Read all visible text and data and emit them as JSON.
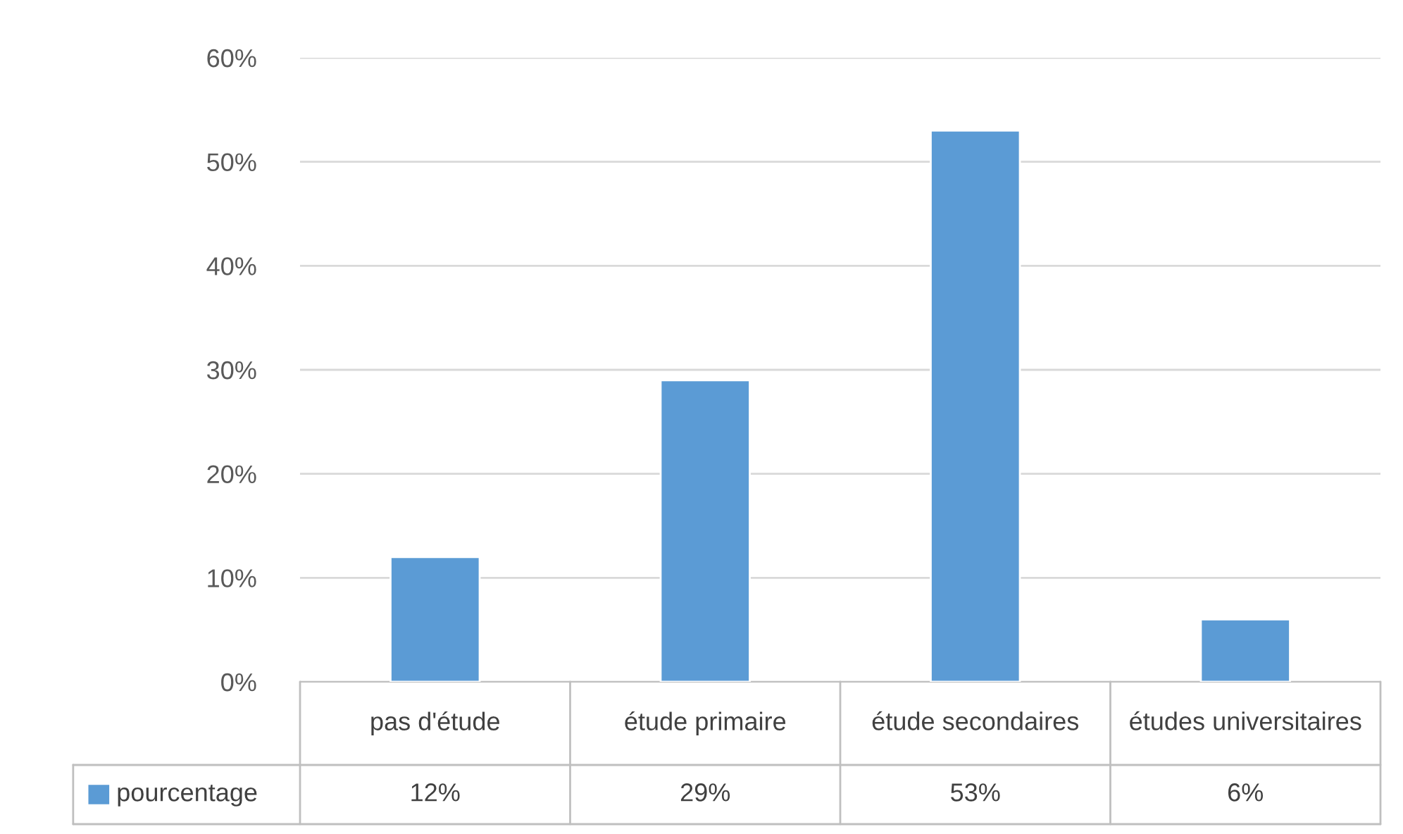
{
  "chart_data": {
    "type": "bar",
    "categories": [
      "pas d'étude",
      "étude primaire",
      "étude secondaires",
      "études universitaires"
    ],
    "series": [
      {
        "name": "pourcentage",
        "color": "#5b9bd5",
        "values": [
          12,
          29,
          53,
          6
        ]
      }
    ],
    "ylim": [
      0,
      60
    ],
    "yticks": [
      {
        "value": 0,
        "label": "0%"
      },
      {
        "value": 10,
        "label": "10%"
      },
      {
        "value": 20,
        "label": "20%"
      },
      {
        "value": 30,
        "label": "30%"
      },
      {
        "value": 40,
        "label": "40%"
      },
      {
        "value": 50,
        "label": "50%"
      },
      {
        "value": 60,
        "label": "60%"
      }
    ],
    "value_labels": [
      "12%",
      "29%",
      "53%",
      "6%"
    ],
    "grid": "y",
    "legend": "bottom"
  }
}
